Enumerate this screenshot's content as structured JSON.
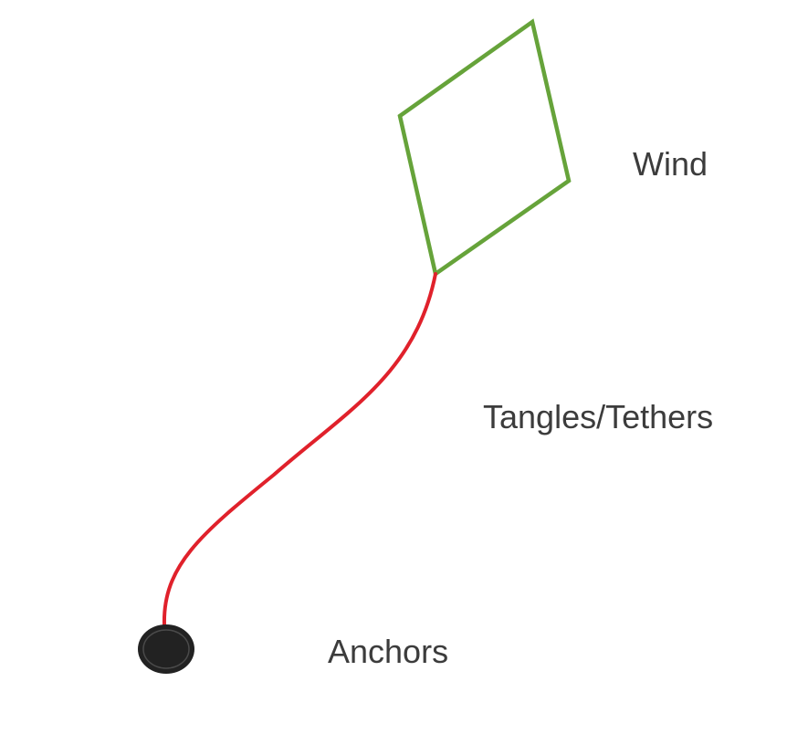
{
  "labels": {
    "wind": "Wind",
    "tethers": "Tangles/Tethers",
    "anchors": "Anchors"
  },
  "shapes": {
    "kite": "kite-diamond",
    "tether": "curved-string",
    "anchor": "round-weight"
  },
  "colors": {
    "kite": "#66a33a",
    "tether": "#e0212b",
    "anchor": "#222222",
    "text": "#3c3c3c"
  }
}
